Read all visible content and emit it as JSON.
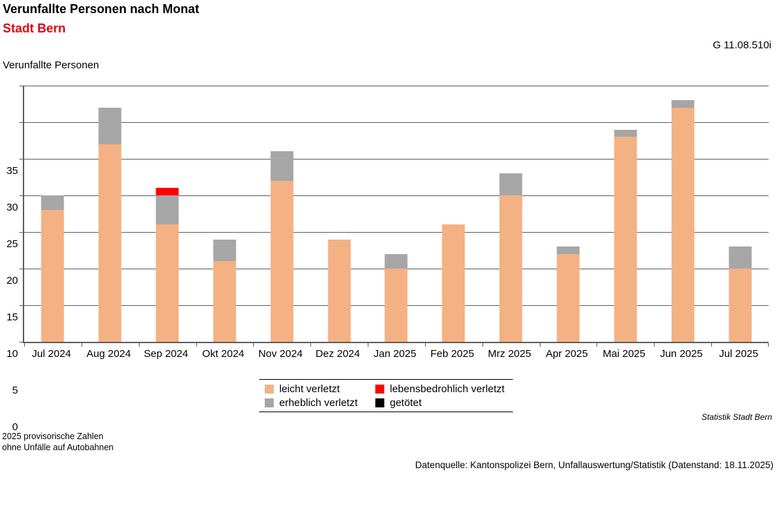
{
  "header": {
    "title": "Verunfallte Personen nach Monat",
    "subtitle": "Stadt Bern",
    "subtitle_color": "#e30613",
    "chart_id": "G 11.08.510i"
  },
  "axis_title": "Verunfallte Personen",
  "chart_data": {
    "type": "bar",
    "stacked": true,
    "title": "Verunfallte Personen nach Monat",
    "subtitle": "Stadt Bern",
    "ylabel": "Verunfallte Personen",
    "xlabel": "",
    "ylim": [
      0,
      35
    ],
    "ytick_step": 5,
    "grid": true,
    "legend_position": "bottom",
    "categories": [
      "Jul 2024",
      "Aug 2024",
      "Sep 2024",
      "Okt 2024",
      "Nov 2024",
      "Dez 2024",
      "Jan 2025",
      "Feb 2025",
      "Mrz 2025",
      "Apr 2025",
      "Mai 2025",
      "Jun 2025",
      "Jul 2025"
    ],
    "series": [
      {
        "name": "leicht verletzt",
        "color": "#F4B183",
        "values": [
          18,
          27,
          16,
          11,
          22,
          14,
          10,
          16,
          20,
          12,
          28,
          32,
          10
        ]
      },
      {
        "name": "erheblich verletzt",
        "color": "#A6A6A6",
        "values": [
          2,
          5,
          4,
          3,
          4,
          0,
          2,
          0,
          3,
          1,
          1,
          1,
          3
        ]
      },
      {
        "name": "lebensbedrohlich verletzt",
        "color": "#FF0000",
        "values": [
          0,
          0,
          1,
          0,
          0,
          0,
          0,
          0,
          0,
          0,
          0,
          0,
          0
        ]
      },
      {
        "name": "getötet",
        "color": "#000000",
        "values": [
          0,
          0,
          0,
          0,
          0,
          0,
          0,
          0,
          0,
          0,
          0,
          0,
          0
        ]
      }
    ],
    "totals": [
      20,
      32,
      21,
      14,
      26,
      14,
      12,
      16,
      23,
      13,
      29,
      33,
      13
    ]
  },
  "footer": {
    "branding": "Statistik Stadt Bern",
    "note_line1": "2025 provisorische Zahlen",
    "note_line2": "ohne Unfälle auf Autobahnen",
    "source": "Datenquelle: Kantonspolizei Bern, Unfallauswertung/Statistik (Datenstand: 18.11.2025)"
  }
}
